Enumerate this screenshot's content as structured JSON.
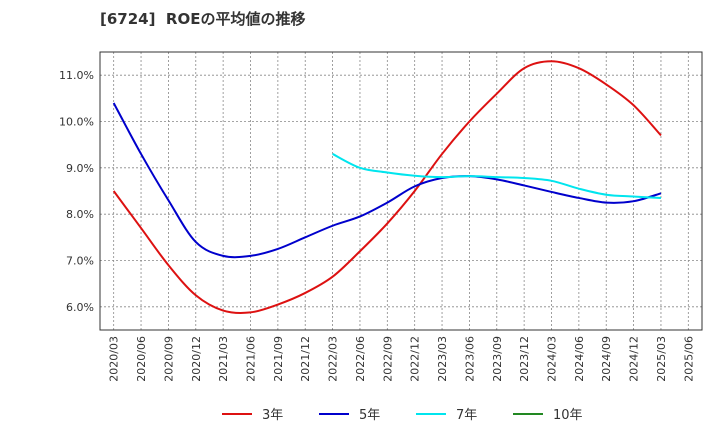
{
  "chart_data": {
    "type": "line",
    "title": "[6724]  ROEの平均値の推移",
    "xlabel": "",
    "ylabel": "",
    "ylim": [
      5.5,
      11.5
    ],
    "yticks": [
      6.0,
      7.0,
      8.0,
      9.0,
      10.0,
      11.0
    ],
    "ytick_labels": [
      "6.0%",
      "7.0%",
      "8.0%",
      "9.0%",
      "10.0%",
      "11.0%"
    ],
    "x_labels": [
      "2020/03",
      "2020/06",
      "2020/09",
      "2020/12",
      "2021/03",
      "2021/06",
      "2021/09",
      "2021/12",
      "2022/03",
      "2022/06",
      "2022/09",
      "2022/12",
      "2023/03",
      "2023/06",
      "2023/09",
      "2023/12",
      "2024/03",
      "2024/06",
      "2024/09",
      "2024/12",
      "2025/03",
      "2025/06"
    ],
    "grid": true,
    "legend": "bottom",
    "series": [
      {
        "name": "3年",
        "color": "#dd1111",
        "values": [
          8.5,
          7.7,
          6.9,
          6.25,
          5.92,
          5.88,
          6.05,
          6.3,
          6.65,
          7.2,
          7.8,
          8.5,
          9.3,
          10.0,
          10.6,
          11.15,
          11.3,
          11.15,
          10.8,
          10.35,
          9.7,
          null
        ]
      },
      {
        "name": "5年",
        "color": "#0000cc",
        "values": [
          10.4,
          9.3,
          8.3,
          7.4,
          7.1,
          7.1,
          7.25,
          7.5,
          7.75,
          7.95,
          8.25,
          8.6,
          8.78,
          8.82,
          8.75,
          8.62,
          8.48,
          8.35,
          8.25,
          8.28,
          8.45,
          null
        ]
      },
      {
        "name": "7年",
        "color": "#00e5ee",
        "values": [
          null,
          null,
          null,
          null,
          null,
          null,
          null,
          null,
          9.3,
          9.0,
          8.9,
          8.83,
          8.8,
          8.82,
          8.8,
          8.78,
          8.72,
          8.55,
          8.42,
          8.38,
          8.35,
          null
        ]
      },
      {
        "name": "10年",
        "color": "#228822",
        "values": [
          null,
          null,
          null,
          null,
          null,
          null,
          null,
          null,
          null,
          null,
          null,
          null,
          null,
          null,
          null,
          null,
          null,
          null,
          null,
          null,
          null,
          null
        ]
      }
    ]
  }
}
